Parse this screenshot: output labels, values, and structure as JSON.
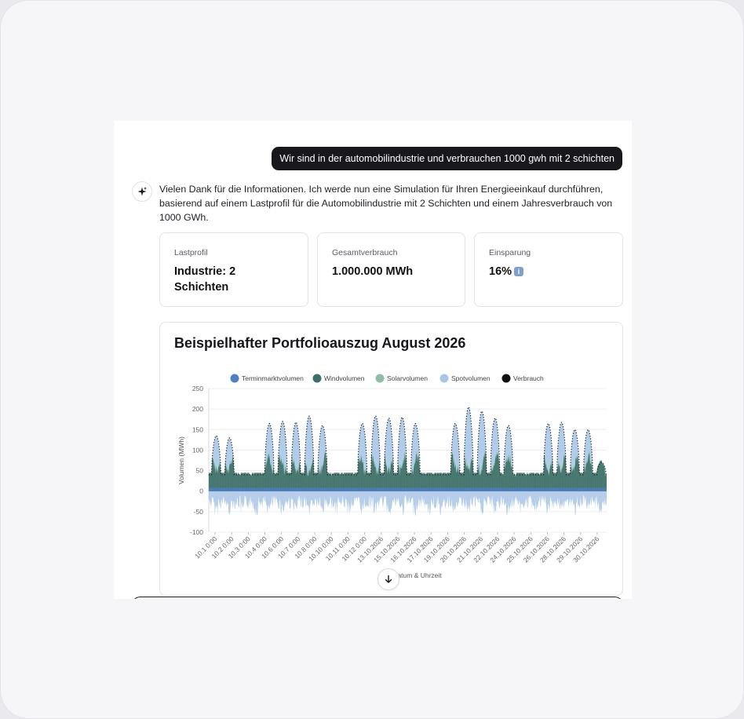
{
  "conversation": {
    "user_message": "Wir sind in der automobilindustrie und verbrauchen 1000 gwh mit 2 schichten",
    "assistant_icon": "sparkle-icon",
    "assistant_message": "Vielen Dank für die Informationen. Ich werde nun eine Simulation für Ihren Energieeinkauf durchführen, basierend auf einem Lastprofil für die Automobilindustrie mit 2 Schichten und einem Jahresverbrauch von 1000 GWh."
  },
  "cards": [
    {
      "label": "Lastprofil",
      "value": "Industrie: 2 Schichten"
    },
    {
      "label": "Gesamtverbrauch",
      "value": "1.000.000 MWh"
    },
    {
      "label": "Einsparung",
      "value": "16%",
      "icon": "info-icon"
    }
  ],
  "chart_card": {
    "title": "Beispielhafter Portfolioauszug August 2026"
  },
  "scroll_button_icon": "arrow-down-icon",
  "chart_data": {
    "type": "area",
    "title": "Beispielhafter Portfolioauszug August 2026",
    "xlabel": "Datum & Uhrzeit",
    "ylabel": "Volumen (MWh)",
    "ylim": [
      -100,
      250
    ],
    "yticks": [
      250,
      200,
      150,
      100,
      50,
      0,
      -50,
      -100
    ],
    "grid": true,
    "legend_position": "top",
    "x_ticks": [
      "10.1 0:00",
      "10.2 0:00",
      "10.3 0:00",
      "10.4 0:00",
      "10.6 0:00",
      "10.7 0:00",
      "10.8 0:00",
      "10.10 0:00",
      "10.11 0:00",
      "10.12 0:00",
      "13.10.2026",
      "15.10.2026",
      "16.10.2026",
      "17.10.2026",
      "19.10.2026",
      "20.10.2026",
      "21.10.2026",
      "22.10.2026",
      "24.10.2026",
      "25.10.2026",
      "26.10.2026",
      "28.10.2026",
      "29.10.2026",
      "30.10.2026"
    ],
    "days": 30,
    "working_days": [
      1,
      2,
      5,
      6,
      7,
      8,
      9,
      12,
      13,
      14,
      15,
      16,
      19,
      20,
      21,
      22,
      23,
      26,
      27,
      28,
      29,
      30
    ],
    "peak_verbrauch_per_day": [
      135,
      130,
      45,
      45,
      165,
      170,
      168,
      183,
      160,
      45,
      45,
      165,
      183,
      178,
      180,
      165,
      45,
      45,
      165,
      205,
      195,
      178,
      160,
      45,
      45,
      165,
      168,
      150,
      150,
      70
    ],
    "base_verbrauch_mwh": 40,
    "terminmarkt_base_mwh": 35,
    "series": [
      {
        "name": "Terminmarktvolumen",
        "color": "#4f80c4"
      },
      {
        "name": "Windvolumen",
        "color": "#3e6e69"
      },
      {
        "name": "Solarvolumen",
        "color": "#8fbfa8"
      },
      {
        "name": "Spotvolumen",
        "color": "#a9c6e6"
      },
      {
        "name": "Verbrauch",
        "color": "#111111"
      }
    ]
  }
}
